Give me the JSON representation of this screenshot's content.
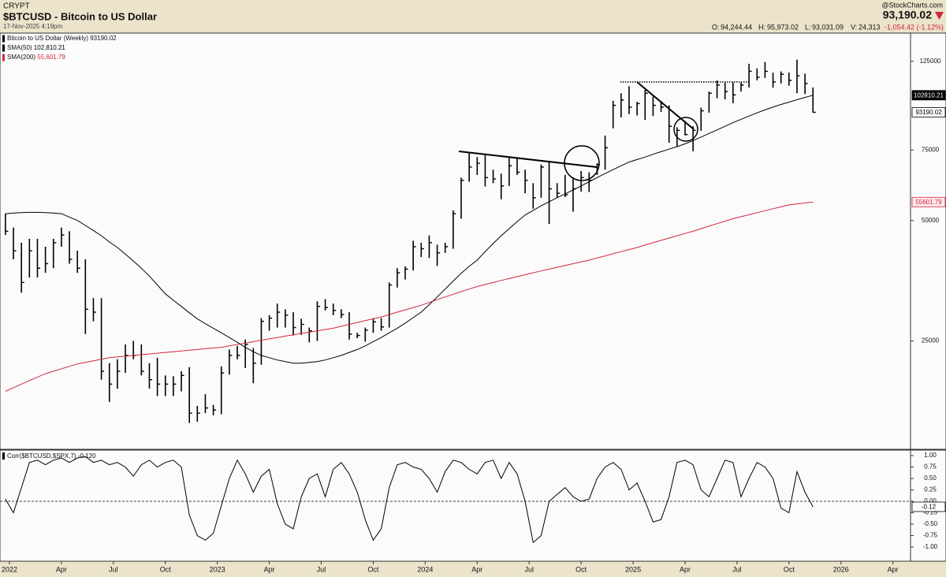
{
  "header": {
    "exchange": "CRYPT",
    "title": "$BTCUSD - Bitcoin to US Dollar",
    "date": "17-Nov-2025 4:19pm",
    "brand": "@StockCharts.com",
    "price": "93,190.02",
    "quote": [
      {
        "label": "O:",
        "value": "94,244.44"
      },
      {
        "label": "H:",
        "value": "95,973.02"
      },
      {
        "label": "L:",
        "value": "93,031.09"
      },
      {
        "label": "V:",
        "value": "24,313"
      }
    ],
    "change": "-1,054.42 (-1.12%)"
  },
  "chart_data": [
    {
      "type": "ohlc",
      "name": "Bitcoin to US Dollar (Weekly)",
      "legend_value": "93190.02",
      "value_label": "93190.02",
      "color": "#000000",
      "log_scale": true,
      "ylim": [
        13400,
        147000
      ],
      "yticks": [
        125000,
        75000,
        50000,
        25000
      ],
      "xlim": [
        -0.68,
        113.2
      ],
      "high": [
        52000,
        48000,
        44000,
        45000,
        45000,
        43000,
        45000,
        48000,
        47000,
        42000,
        40000,
        32000,
        32000,
        22000,
        22500,
        24500,
        25000,
        24500,
        22000,
        22700,
        20500,
        20400,
        21000,
        21500,
        17200,
        18400,
        17300,
        21600,
        23800,
        24300,
        25200,
        24000,
        28500,
        29000,
        31000,
        30000,
        29500,
        28400,
        27000,
        31400,
        31800,
        31000,
        30000,
        29500,
        26200,
        27000,
        28500,
        28500,
        35000,
        38000,
        38400,
        44500,
        44000,
        45900,
        43500,
        44000,
        53000,
        64000,
        73800,
        72000,
        72800,
        67000,
        65500,
        71900,
        71900,
        67000,
        62000,
        69000,
        70000,
        62000,
        65000,
        64100,
        66500,
        66000,
        69500,
        81500,
        99600,
        104000,
        108300,
        99000,
        106000,
        102000,
        99500,
        97000,
        85500,
        88700,
        86000,
        95700,
        105000,
        111900,
        110500,
        110700,
        110600,
        123200,
        120000,
        124500,
        117000,
        117900,
        117100,
        126200,
        116400,
        107500
      ],
      "low": [
        46000,
        40000,
        33000,
        36000,
        36000,
        37000,
        38000,
        43000,
        39000,
        37000,
        26000,
        28000,
        20000,
        17600,
        19000,
        20800,
        22500,
        20500,
        19000,
        18200,
        18200,
        18200,
        18700,
        15600,
        15700,
        16500,
        16300,
        16400,
        20600,
        22500,
        21400,
        19600,
        21800,
        26500,
        27000,
        27000,
        25800,
        25900,
        24800,
        25000,
        29800,
        29000,
        28500,
        25200,
        25400,
        24900,
        26200,
        26500,
        27000,
        34000,
        35600,
        37500,
        40500,
        40300,
        38500,
        41500,
        42500,
        50500,
        62500,
        65000,
        60800,
        62000,
        56500,
        61000,
        65000,
        58500,
        53500,
        57000,
        49000,
        57000,
        57200,
        52600,
        59000,
        58900,
        65000,
        67000,
        85000,
        90500,
        92200,
        91500,
        89200,
        91200,
        93400,
        78200,
        76600,
        81600,
        74500,
        83800,
        93000,
        101000,
        100400,
        98200,
        105000,
        107500,
        112000,
        113600,
        107300,
        110000,
        108600,
        104000,
        103500,
        93031.09
      ],
      "close": [
        47000,
        42000,
        35000,
        42000,
        38000,
        39000,
        44000,
        46000,
        40000,
        38000,
        30000,
        29500,
        21000,
        19500,
        21000,
        23000,
        23000,
        21000,
        20000,
        19500,
        19500,
        19500,
        20500,
        16500,
        16500,
        17000,
        16800,
        20800,
        23000,
        23000,
        24500,
        22000,
        28000,
        28500,
        29500,
        29000,
        27000,
        27500,
        26500,
        30500,
        30300,
        29800,
        29100,
        26000,
        25800,
        26600,
        27900,
        27100,
        34500,
        37000,
        37800,
        43000,
        42500,
        44000,
        41500,
        43000,
        52000,
        63000,
        68000,
        69500,
        64000,
        63500,
        61000,
        68500,
        66000,
        63000,
        57000,
        68000,
        60000,
        58500,
        58000,
        60000,
        64000,
        63000,
        69000,
        76000,
        97000,
        100000,
        96000,
        98000,
        104000,
        97000,
        96000,
        86000,
        84000,
        82000,
        84000,
        94000,
        104000,
        109000,
        105000,
        103000,
        109000,
        118000,
        114000,
        118000,
        111000,
        116000,
        112000,
        115000,
        110000,
        93190.02
      ],
      "series": [
        {
          "name": "SMA(50)",
          "color": "#000000",
          "legend_value": "102,810.21",
          "value_label": "102810.21",
          "values": [
            52000,
            52200,
            52300,
            52400,
            52400,
            52300,
            52200,
            52000,
            51000,
            50000,
            48600,
            47200,
            45800,
            44200,
            42800,
            41200,
            39600,
            38000,
            36300,
            34500,
            32800,
            31600,
            30500,
            29400,
            28400,
            27600,
            26900,
            26200,
            25500,
            24800,
            24100,
            23500,
            23000,
            22700,
            22400,
            22200,
            22000,
            22000,
            22100,
            22200,
            22400,
            22700,
            23000,
            23400,
            23800,
            24300,
            24900,
            25500,
            26200,
            26900,
            27700,
            28600,
            29500,
            30800,
            32200,
            33700,
            35300,
            36900,
            38400,
            39800,
            41800,
            43800,
            45800,
            47700,
            49700,
            51600,
            53000,
            54400,
            55700,
            57000,
            58300,
            59600,
            61000,
            62500,
            64000,
            65500,
            67000,
            68500,
            70000,
            71000,
            72000,
            73200,
            74300,
            75400,
            76500,
            77700,
            79200,
            80800,
            82500,
            84200,
            86000,
            87800,
            89500,
            91200,
            92900,
            94500,
            96000,
            97500,
            98800,
            100200,
            101500,
            102810.21
          ]
        },
        {
          "name": "SMA(200)",
          "color": "#d0283c",
          "legend_value": "55,601.79",
          "value_label": "55601.79",
          "values": [
            18700,
            19100,
            19500,
            19900,
            20300,
            20700,
            21000,
            21300,
            21600,
            21900,
            22100,
            22300,
            22500,
            22700,
            22800,
            22900,
            23000,
            23100,
            23200,
            23300,
            23400,
            23500,
            23600,
            23700,
            23800,
            23900,
            24000,
            24100,
            24300,
            24500,
            24700,
            24900,
            25100,
            25300,
            25500,
            25700,
            25900,
            26100,
            26300,
            26500,
            26700,
            26900,
            27200,
            27500,
            27800,
            28100,
            28400,
            28700,
            29100,
            29500,
            29900,
            30300,
            30700,
            31200,
            31700,
            32200,
            32700,
            33200,
            33700,
            34200,
            34600,
            35000,
            35400,
            35800,
            36200,
            36600,
            37000,
            37400,
            37800,
            38200,
            38600,
            39000,
            39400,
            39800,
            40300,
            40800,
            41300,
            41800,
            42300,
            42800,
            43400,
            44000,
            44600,
            45200,
            45800,
            46400,
            47000,
            47700,
            48400,
            49100,
            49800,
            50500,
            51100,
            51700,
            52300,
            52900,
            53500,
            54100,
            54700,
            55000,
            55300,
            55601.79
          ]
        }
      ]
    },
    {
      "type": "line",
      "title": "Corr($BTCUSD,$SPX,7) -0.120",
      "color": "#000000",
      "value_label": "-0.12",
      "hline": 0,
      "ylim": [
        -1.31,
        1.12
      ],
      "yticks": [
        {
          "value": 1,
          "label": "1.00"
        },
        {
          "value": 0.75,
          "label": "0.75"
        },
        {
          "value": 0.5,
          "label": "0.50"
        },
        {
          "value": 0.25,
          "label": "0.25"
        },
        {
          "value": 0,
          "label": "0.00"
        },
        {
          "value": -0.25,
          "label": "-0.25"
        },
        {
          "value": -0.5,
          "label": "-0.50"
        },
        {
          "value": -0.75,
          "label": "-0.75"
        },
        {
          "value": -1,
          "label": "-1.00"
        }
      ],
      "xlim": [
        -0.68,
        113.2
      ],
      "xticks": [
        {
          "value": 0.5,
          "label": "2022"
        },
        {
          "value": 7,
          "label": "Apr"
        },
        {
          "value": 13.5,
          "label": "Jul"
        },
        {
          "value": 20,
          "label": "Oct"
        },
        {
          "value": 26.5,
          "label": "2023"
        },
        {
          "value": 33,
          "label": "Apr"
        },
        {
          "value": 39.5,
          "label": "Jul"
        },
        {
          "value": 46,
          "label": "Oct"
        },
        {
          "value": 52.5,
          "label": "2024"
        },
        {
          "value": 59,
          "label": "Apr"
        },
        {
          "value": 65.5,
          "label": "Jul"
        },
        {
          "value": 72,
          "label": "Oct"
        },
        {
          "value": 78.5,
          "label": "2025"
        },
        {
          "value": 85,
          "label": "Apr"
        },
        {
          "value": 91.5,
          "label": "Jul"
        },
        {
          "value": 98,
          "label": "Oct"
        },
        {
          "value": 104.5,
          "label": "2026"
        },
        {
          "value": 111,
          "label": "Apr"
        }
      ],
      "values": [
        0.05,
        -0.25,
        0.3,
        0.85,
        0.9,
        0.8,
        0.9,
        0.95,
        0.85,
        0.95,
        0.98,
        0.85,
        0.9,
        0.8,
        0.85,
        0.75,
        0.55,
        0.8,
        0.9,
        0.75,
        0.85,
        0.9,
        0.75,
        -0.3,
        -0.75,
        -0.85,
        -0.7,
        -0.1,
        0.5,
        0.9,
        0.6,
        0.2,
        0.55,
        0.7,
        -0.05,
        -0.5,
        -0.6,
        0.1,
        0.5,
        0.6,
        0.1,
        0.7,
        0.85,
        0.6,
        0.2,
        -0.4,
        -0.85,
        -0.6,
        0.3,
        0.8,
        0.85,
        0.75,
        0.7,
        0.5,
        0.2,
        0.65,
        0.9,
        0.85,
        0.7,
        0.6,
        0.85,
        0.9,
        0.5,
        0.85,
        0.6,
        0,
        -0.9,
        -0.75,
        0,
        0.15,
        0.3,
        0.1,
        0,
        0.05,
        0.5,
        0.75,
        0.85,
        0.7,
        0.25,
        0.4,
        0,
        -0.45,
        -0.4,
        0.1,
        0.85,
        0.9,
        0.8,
        0.25,
        0.1,
        0.5,
        0.9,
        0.85,
        0.1,
        0.5,
        0.85,
        0.75,
        0.5,
        -0.15,
        -0.25,
        0.65,
        0.2,
        -0.12
      ]
    }
  ]
}
